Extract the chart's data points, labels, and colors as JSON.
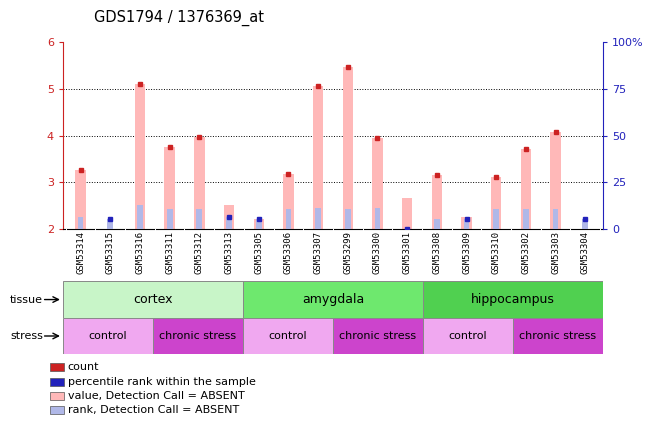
{
  "title": "GDS1794 / 1376369_at",
  "samples": [
    "GSM53314",
    "GSM53315",
    "GSM53316",
    "GSM53311",
    "GSM53312",
    "GSM53313",
    "GSM53305",
    "GSM53306",
    "GSM53307",
    "GSM53299",
    "GSM53300",
    "GSM53301",
    "GSM53308",
    "GSM53309",
    "GSM53310",
    "GSM53302",
    "GSM53303",
    "GSM53304"
  ],
  "pink_values": [
    3.25,
    2.0,
    5.1,
    3.75,
    3.97,
    2.5,
    2.2,
    3.18,
    5.07,
    5.47,
    3.95,
    2.65,
    3.15,
    2.25,
    3.12,
    3.72,
    4.07,
    2.0
  ],
  "blue_values": [
    2.25,
    2.2,
    2.5,
    2.42,
    2.42,
    2.25,
    2.2,
    2.42,
    2.45,
    2.42,
    2.45,
    2.0,
    2.2,
    2.2,
    2.42,
    2.42,
    2.42,
    2.2
  ],
  "has_red_dot": [
    true,
    false,
    true,
    true,
    true,
    false,
    false,
    true,
    true,
    true,
    true,
    false,
    true,
    false,
    true,
    true,
    true,
    false
  ],
  "has_blue_dot": [
    false,
    true,
    false,
    false,
    false,
    true,
    true,
    false,
    false,
    false,
    false,
    true,
    false,
    true,
    false,
    false,
    false,
    true
  ],
  "ylim_left": [
    2.0,
    6.0
  ],
  "ylim_right": [
    0,
    100
  ],
  "yticks_left": [
    2,
    3,
    4,
    5,
    6
  ],
  "yticks_right": [
    0,
    25,
    50,
    75,
    100
  ],
  "tissue_groups": [
    {
      "label": "cortex",
      "start": 0,
      "end": 6,
      "color": "#c8f5c8"
    },
    {
      "label": "amygdala",
      "start": 6,
      "end": 12,
      "color": "#6ee86e"
    },
    {
      "label": "hippocampus",
      "start": 12,
      "end": 18,
      "color": "#50d050"
    }
  ],
  "stress_groups": [
    {
      "label": "control",
      "start": 0,
      "end": 3,
      "color": "#f0a8f0"
    },
    {
      "label": "chronic stress",
      "start": 3,
      "end": 6,
      "color": "#cc44cc"
    },
    {
      "label": "control",
      "start": 6,
      "end": 9,
      "color": "#f0a8f0"
    },
    {
      "label": "chronic stress",
      "start": 9,
      "end": 12,
      "color": "#cc44cc"
    },
    {
      "label": "control",
      "start": 12,
      "end": 15,
      "color": "#f0a8f0"
    },
    {
      "label": "chronic stress",
      "start": 15,
      "end": 18,
      "color": "#cc44cc"
    }
  ],
  "pink_bar_color": "#ffb8b8",
  "blue_bar_color": "#b0b8e8",
  "red_dot_color": "#cc2222",
  "blue_dot_color": "#2222bb",
  "left_axis_color": "#cc2222",
  "right_axis_color": "#2222bb",
  "grid_color": "#000000",
  "bg_color": "#ffffff",
  "xtick_bg_color": "#d8d8d8",
  "legend_items": [
    {
      "label": "count",
      "color": "#cc2222"
    },
    {
      "label": "percentile rank within the sample",
      "color": "#2222bb"
    },
    {
      "label": "value, Detection Call = ABSENT",
      "color": "#ffb8b8"
    },
    {
      "label": "rank, Detection Call = ABSENT",
      "color": "#b0b8e8"
    }
  ]
}
